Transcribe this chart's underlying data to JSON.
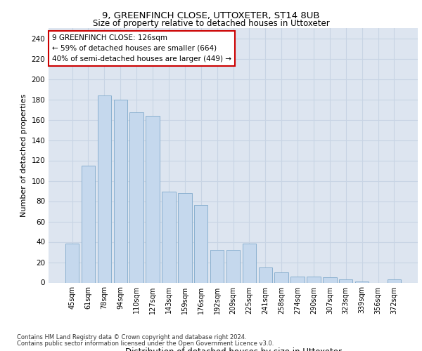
{
  "title1": "9, GREENFINCH CLOSE, UTTOXETER, ST14 8UB",
  "title2": "Size of property relative to detached houses in Uttoxeter",
  "xlabel": "Distribution of detached houses by size in Uttoxeter",
  "ylabel": "Number of detached properties",
  "categories": [
    "45sqm",
    "61sqm",
    "78sqm",
    "94sqm",
    "110sqm",
    "127sqm",
    "143sqm",
    "159sqm",
    "176sqm",
    "192sqm",
    "209sqm",
    "225sqm",
    "241sqm",
    "258sqm",
    "274sqm",
    "290sqm",
    "307sqm",
    "323sqm",
    "339sqm",
    "356sqm",
    "372sqm"
  ],
  "values": [
    38,
    115,
    184,
    180,
    167,
    164,
    89,
    88,
    76,
    32,
    32,
    38,
    15,
    10,
    6,
    6,
    5,
    3,
    1,
    0,
    3
  ],
  "bar_color": "#c5d8ed",
  "bar_edge_color": "#8ab0d0",
  "highlight_bar_index": 5,
  "highlight_edge_color": "#cc0000",
  "annotation_text": "9 GREENFINCH CLOSE: 126sqm\n← 59% of detached houses are smaller (664)\n40% of semi-detached houses are larger (449) →",
  "annotation_box_color": "#ffffff",
  "annotation_box_edge": "#cc0000",
  "ylim": [
    0,
    250
  ],
  "yticks": [
    0,
    20,
    40,
    60,
    80,
    100,
    120,
    140,
    160,
    180,
    200,
    220,
    240
  ],
  "grid_color": "#c8d4e4",
  "background_color": "#dde5f0",
  "footer1": "Contains HM Land Registry data © Crown copyright and database right 2024.",
  "footer2": "Contains public sector information licensed under the Open Government Licence v3.0.",
  "fig_bg": "#ffffff"
}
